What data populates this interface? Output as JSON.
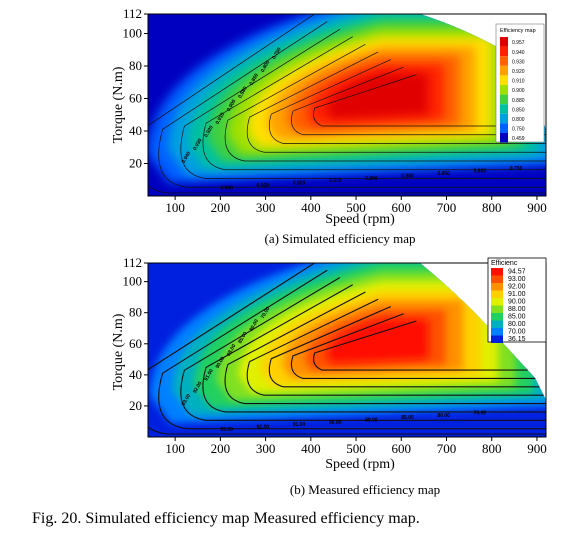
{
  "figure_caption": "Fig. 20. Simulated efficiency map Measured efficiency map.",
  "chart_data": [
    {
      "type": "heatmap",
      "caption": "(a) Simulated efficiency map",
      "xlabel": "Speed (rpm)",
      "ylabel": "Torque (N.m)",
      "xlim": [
        40,
        920
      ],
      "ylim": [
        0,
        112
      ],
      "xticks": [
        100,
        200,
        300,
        400,
        500,
        600,
        700,
        800,
        900
      ],
      "yticks": [
        20,
        40,
        60,
        80,
        100,
        112
      ],
      "legend_title": "Efficiency map",
      "legend_position": "top-right",
      "legend_values": [
        "0.957",
        "0.940",
        "0.930",
        "0.920",
        "0.910",
        "0.900",
        "0.880",
        "0.850",
        "0.800",
        "0.750",
        "0.459"
      ],
      "legend_colors": [
        "#e00000",
        "#ff2000",
        "#ff6000",
        "#ffa000",
        "#ffe000",
        "#a0e000",
        "#40d040",
        "#00c0a0",
        "#00a0e0",
        "#0060ff",
        "#0000c0"
      ],
      "peak_efficiency": 0.957,
      "contour_labels": [
        "0.940",
        "0.930",
        "0.920",
        "0.910",
        "0.900",
        "0.880",
        "0.850",
        "0.800",
        "0.750",
        "0.940",
        "0.930",
        "0.920",
        "0.910",
        "0.900",
        "0.880",
        "0.850",
        "0.800",
        "0.750"
      ]
    },
    {
      "type": "heatmap",
      "caption": "(b) Measured efficiency map",
      "xlabel": "Speed (rpm)",
      "ylabel": "Torque (N.m)",
      "xlim": [
        40,
        920
      ],
      "ylim": [
        0,
        112
      ],
      "xticks": [
        100,
        200,
        300,
        400,
        500,
        600,
        700,
        800,
        900
      ],
      "yticks": [
        20,
        40,
        60,
        80,
        100,
        112
      ],
      "legend_title": "Efficienc",
      "legend_position": "top-right",
      "legend_values": [
        "94.57",
        "93.00",
        "92.00",
        "91.00",
        "90.00",
        "88.00",
        "85.00",
        "80.00",
        "70.00",
        "36.15"
      ],
      "legend_colors": [
        "#ff1000",
        "#ff5000",
        "#ff9000",
        "#ffd000",
        "#e0f000",
        "#80e020",
        "#20d060",
        "#00b0c0",
        "#0080ff",
        "#0020e0"
      ],
      "peak_efficiency": 94.57,
      "contour_labels": [
        "93.00",
        "92.00",
        "91.00",
        "90.00",
        "88.00",
        "85.00",
        "80.00",
        "70.00",
        "93.00",
        "92.00",
        "91.00",
        "90.00",
        "88.00",
        "85.00",
        "80.00",
        "70.00"
      ]
    }
  ]
}
